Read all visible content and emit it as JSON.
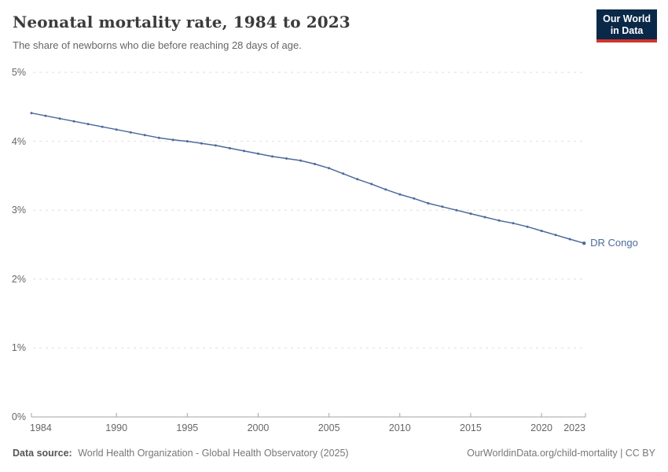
{
  "header": {
    "title": "Neonatal mortality rate, 1984 to 2023",
    "subtitle": "The share of newborns who die before reaching 28 days of age."
  },
  "logo": {
    "line1": "Our World",
    "line2": "in Data",
    "bg_color": "#0a2848",
    "accent_color": "#d0342c"
  },
  "chart_data": {
    "type": "line",
    "title": "Neonatal mortality rate, 1984 to 2023",
    "xlabel": "",
    "ylabel": "",
    "unit": "%",
    "x": [
      1984,
      1985,
      1986,
      1987,
      1988,
      1989,
      1990,
      1991,
      1992,
      1993,
      1994,
      1995,
      1996,
      1997,
      1998,
      1999,
      2000,
      2001,
      2002,
      2003,
      2004,
      2005,
      2006,
      2007,
      2008,
      2009,
      2010,
      2011,
      2012,
      2013,
      2014,
      2015,
      2016,
      2017,
      2018,
      2019,
      2020,
      2021,
      2022,
      2023
    ],
    "series": [
      {
        "name": "DR Congo",
        "color": "#4C6A9C",
        "values": [
          4.41,
          4.37,
          4.33,
          4.29,
          4.25,
          4.21,
          4.17,
          4.13,
          4.09,
          4.05,
          4.02,
          4.0,
          3.97,
          3.94,
          3.9,
          3.86,
          3.82,
          3.78,
          3.75,
          3.72,
          3.67,
          3.61,
          3.53,
          3.45,
          3.38,
          3.3,
          3.23,
          3.17,
          3.1,
          3.05,
          3.0,
          2.95,
          2.9,
          2.85,
          2.81,
          2.76,
          2.7,
          2.64,
          2.58,
          2.52
        ]
      }
    ],
    "xlim": [
      1984,
      2023
    ],
    "ylim": [
      0,
      5
    ],
    "yticks": [
      0,
      1,
      2,
      3,
      4,
      5
    ],
    "ytick_labels": [
      "0%",
      "1%",
      "2%",
      "3%",
      "4%",
      "5%"
    ],
    "xticks": [
      1984,
      1990,
      1995,
      2000,
      2005,
      2010,
      2015,
      2020,
      2023
    ],
    "xtick_labels": [
      "1984",
      "1990",
      "1995",
      "2000",
      "2005",
      "2010",
      "2015",
      "2020",
      "2023"
    ],
    "grid": "horizontal-dashed",
    "legend": "end-label",
    "markers": true
  },
  "footer": {
    "datasource_label": "Data source:",
    "datasource_text": "World Health Organization - Global Health Observatory (2025)",
    "right": "OurWorldinData.org/child-mortality | CC BY"
  },
  "colors": {
    "grid": "#dedede",
    "axis": "#a3a3a3",
    "tick_text": "#666666",
    "title_text": "#3b3b3b",
    "subtitle_text": "#666666",
    "footer_text": "#777777",
    "line": "#4C6A9C"
  }
}
